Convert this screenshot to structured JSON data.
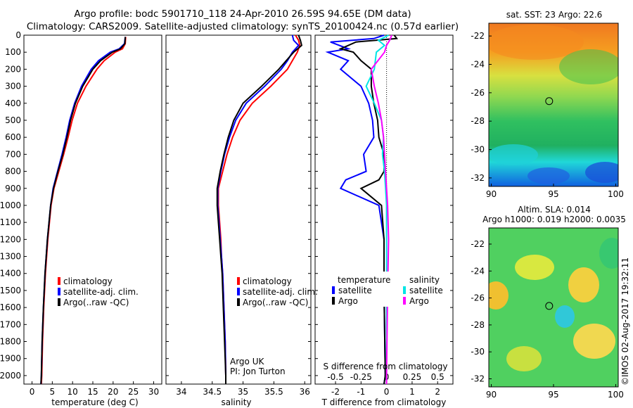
{
  "title_line1": "Argo profile: bodc 5901710_118 24-Apr-2010 26.59S 94.65E (DM data)",
  "title_line2": "Climatology: CARS2009. Satellite-adjusted climatology: synTS_20100424.nc (0.57d earlier)",
  "colors": {
    "climatology": "#ff0000",
    "satellite": "#0000ff",
    "argo": "#000000",
    "sal_satellite": "#00e5e5",
    "sal_argo": "#ff00ff"
  },
  "footer_vertical": "©IMOS 02-Aug-2017 19:32:11",
  "chart_data": [
    {
      "type": "line",
      "xlabel": "temperature (deg C)",
      "x_ticks": [
        "0",
        "5",
        "10",
        "15",
        "20",
        "25",
        "30"
      ],
      "xlim": [
        -2,
        32
      ],
      "ylim": [
        2050,
        0
      ],
      "y_ticks": [
        "0",
        "100",
        "200",
        "300",
        "400",
        "500",
        "600",
        "700",
        "800",
        "900",
        "1000",
        "1100",
        "1200",
        "1300",
        "1400",
        "1500",
        "1600",
        "1700",
        "1800",
        "1900",
        "2000"
      ],
      "legend": [
        "climatology",
        "satellite-adj. clim.",
        "Argo(..raw -QC)"
      ],
      "series": [
        {
          "name": "climatology",
          "color_key": "climatology",
          "depth": [
            10,
            50,
            80,
            100,
            150,
            200,
            300,
            400,
            500,
            600,
            700,
            800,
            900,
            1000,
            1200,
            1400,
            1600,
            1800,
            2000,
            2050
          ],
          "values": [
            23.1,
            23.0,
            22.3,
            20.5,
            17.8,
            16.0,
            13.3,
            11.2,
            9.9,
            8.9,
            7.8,
            6.6,
            5.4,
            4.7,
            3.9,
            3.3,
            2.9,
            2.6,
            2.4,
            2.3
          ]
        },
        {
          "name": "satellite-adj. clim.",
          "color_key": "satellite",
          "depth": [
            10,
            50,
            80,
            100,
            150,
            200,
            300,
            400,
            500,
            600,
            700,
            800,
            900,
            1000,
            1200,
            1400,
            1600,
            1800,
            2000,
            2050
          ],
          "values": [
            23.0,
            22.8,
            21.5,
            19.3,
            16.4,
            14.6,
            12.2,
            10.5,
            9.3,
            8.4,
            7.4,
            6.3,
            5.2,
            4.6,
            3.8,
            3.2,
            2.8,
            2.5,
            2.3,
            2.2
          ]
        },
        {
          "name": "Argo(..raw -QC)",
          "color_key": "argo",
          "depth": [
            10,
            50,
            80,
            100,
            150,
            200,
            300,
            400,
            500,
            600,
            700,
            800,
            900,
            1000,
            1200,
            1400,
            1600,
            1800,
            2000,
            2050
          ],
          "values": [
            23.0,
            22.9,
            21.8,
            19.8,
            16.9,
            15.0,
            12.5,
            10.7,
            9.5,
            8.6,
            7.6,
            6.4,
            5.3,
            4.6,
            3.8,
            3.2,
            2.8,
            2.5,
            2.3,
            2.2
          ]
        }
      ]
    },
    {
      "type": "line",
      "xlabel": "salinity",
      "x_ticks": [
        "34",
        "34.5",
        "35",
        "35.5",
        "36"
      ],
      "xlim": [
        33.75,
        36.1
      ],
      "ylim": [
        2050,
        0
      ],
      "legend": [
        "climatology",
        "satellite-adj. clim.",
        "Argo(..raw -QC)"
      ],
      "annotation": [
        "Argo UK",
        "PI: Jon Turton"
      ],
      "series": [
        {
          "name": "climatology",
          "color_key": "climatology",
          "depth": [
            0,
            30,
            60,
            100,
            150,
            200,
            300,
            400,
            500,
            600,
            700,
            800,
            900,
            1000,
            1100,
            1200,
            1300,
            1400,
            1600,
            1800,
            2000,
            2050
          ],
          "values": [
            35.85,
            35.9,
            35.92,
            35.88,
            35.8,
            35.72,
            35.45,
            35.15,
            34.95,
            34.83,
            34.74,
            34.67,
            34.6,
            34.6,
            34.62,
            34.64,
            34.65,
            34.67,
            34.69,
            34.71,
            34.72,
            34.72
          ]
        },
        {
          "name": "satellite-adj. clim.",
          "color_key": "satellite",
          "depth": [
            0,
            30,
            60,
            100,
            150,
            200,
            300,
            400,
            500,
            600,
            700,
            800,
            900,
            1000,
            1100,
            1200,
            1300,
            1400,
            1600,
            1800,
            2000,
            2050
          ],
          "values": [
            35.8,
            35.82,
            35.9,
            35.8,
            35.72,
            35.62,
            35.35,
            35.05,
            34.88,
            34.78,
            34.7,
            34.64,
            34.59,
            34.59,
            34.61,
            34.63,
            34.65,
            34.67,
            34.69,
            34.71,
            34.72,
            34.72
          ]
        },
        {
          "name": "Argo(..raw -QC)",
          "color_key": "argo",
          "depth": [
            0,
            30,
            60,
            100,
            150,
            200,
            300,
            400,
            500,
            600,
            700,
            800,
            900,
            1000,
            1100,
            1200,
            1300,
            1400,
            1600,
            1800,
            2000,
            2050
          ],
          "values": [
            35.9,
            35.93,
            35.95,
            35.82,
            35.7,
            35.58,
            35.3,
            35.0,
            34.85,
            34.76,
            34.69,
            34.63,
            34.58,
            34.58,
            34.6,
            34.62,
            34.64,
            34.66,
            34.68,
            34.7,
            34.72,
            34.72
          ]
        }
      ]
    },
    {
      "type": "line",
      "xlabel": "T difference from climatology",
      "x_ticks": [
        "-2",
        "-1",
        "0",
        "1",
        "2"
      ],
      "xlim": [
        -2.8,
        2.6
      ],
      "top_label": "S difference from climatology",
      "s_ticks": [
        "-0.5",
        "-0.25",
        "0",
        "0.25",
        "0.5"
      ],
      "ylim": [
        2050,
        0
      ],
      "legend_left_title": "temperature",
      "legend_right_title": "salinity",
      "legend_left": [
        "satellite",
        "Argo"
      ],
      "legend_right": [
        "satellite",
        "Argo"
      ],
      "series": [
        {
          "name": "T satellite",
          "color_key": "satellite",
          "depth": [
            0,
            20,
            40,
            80,
            100,
            150,
            200,
            300,
            400,
            500,
            600,
            700,
            800,
            850,
            900,
            1000,
            1200,
            1500,
            2000,
            2050
          ],
          "values": [
            -0.1,
            -0.5,
            -2.2,
            -1.5,
            -2.3,
            -1.5,
            -1.8,
            -1.0,
            -0.7,
            -0.55,
            -0.5,
            -0.9,
            -0.8,
            -1.6,
            -1.8,
            -0.3,
            -0.1,
            -0.1,
            -0.05,
            -0.1
          ]
        },
        {
          "name": "T Argo",
          "color_key": "argo",
          "depth": [
            0,
            20,
            40,
            80,
            100,
            150,
            200,
            300,
            400,
            500,
            600,
            700,
            800,
            850,
            900,
            1000,
            1200,
            1500,
            2000,
            2050
          ],
          "values": [
            0.3,
            0.4,
            -1.2,
            -1.8,
            -1.3,
            -1.0,
            -0.6,
            -0.6,
            -0.5,
            -0.35,
            -0.3,
            -0.1,
            -0.1,
            -0.3,
            -1.0,
            -0.2,
            -0.1,
            -0.1,
            -0.05,
            -0.1
          ]
        },
        {
          "name": "S satellite",
          "color_key": "sal_satellite",
          "depth": [
            0,
            30,
            60,
            100,
            200,
            300,
            400,
            500,
            600,
            700,
            800,
            900,
            1000,
            1200,
            1500,
            2000,
            2050
          ],
          "values": [
            0.02,
            -0.08,
            -0.02,
            -0.1,
            -0.12,
            -0.2,
            -0.12,
            -0.05,
            -0.03,
            -0.04,
            -0.02,
            -0.01,
            0.0,
            0.0,
            0.0,
            0.0,
            0.0
          ]
        },
        {
          "name": "S Argo",
          "color_key": "sal_argo",
          "depth": [
            0,
            30,
            60,
            100,
            200,
            300,
            400,
            500,
            600,
            700,
            800,
            900,
            1000,
            1200,
            1500,
            2000,
            2050
          ],
          "values": [
            0.05,
            0.03,
            0.0,
            -0.02,
            -0.15,
            -0.12,
            -0.08,
            -0.05,
            -0.03,
            -0.02,
            -0.01,
            0.0,
            0.01,
            0.02,
            0.01,
            0.0,
            0.0
          ]
        }
      ]
    },
    {
      "type": "heatmap",
      "title": "sat. SST: 23 Argo: 22.6",
      "x_ticks": [
        "90",
        "95",
        "100"
      ],
      "y_ticks": [
        "-22",
        "-24",
        "-26",
        "-28",
        "-30",
        "-32"
      ],
      "xlim": [
        89.8,
        100.2
      ],
      "ylim": [
        -32.6,
        -21.1
      ],
      "marker": {
        "lon": 94.65,
        "lat": -26.59
      }
    },
    {
      "type": "heatmap",
      "title_line1": "Altim. SLA: 0.014",
      "title_line2": "Argo h1000: 0.019 h2000: 0.0035",
      "x_ticks": [
        "90",
        "95",
        "100"
      ],
      "y_ticks": [
        "-22",
        "-24",
        "-26",
        "-28",
        "-30",
        "-32"
      ],
      "xlim": [
        89.8,
        100.2
      ],
      "ylim": [
        -32.6,
        -20.8
      ],
      "marker": {
        "lon": 94.65,
        "lat": -26.59
      }
    }
  ]
}
